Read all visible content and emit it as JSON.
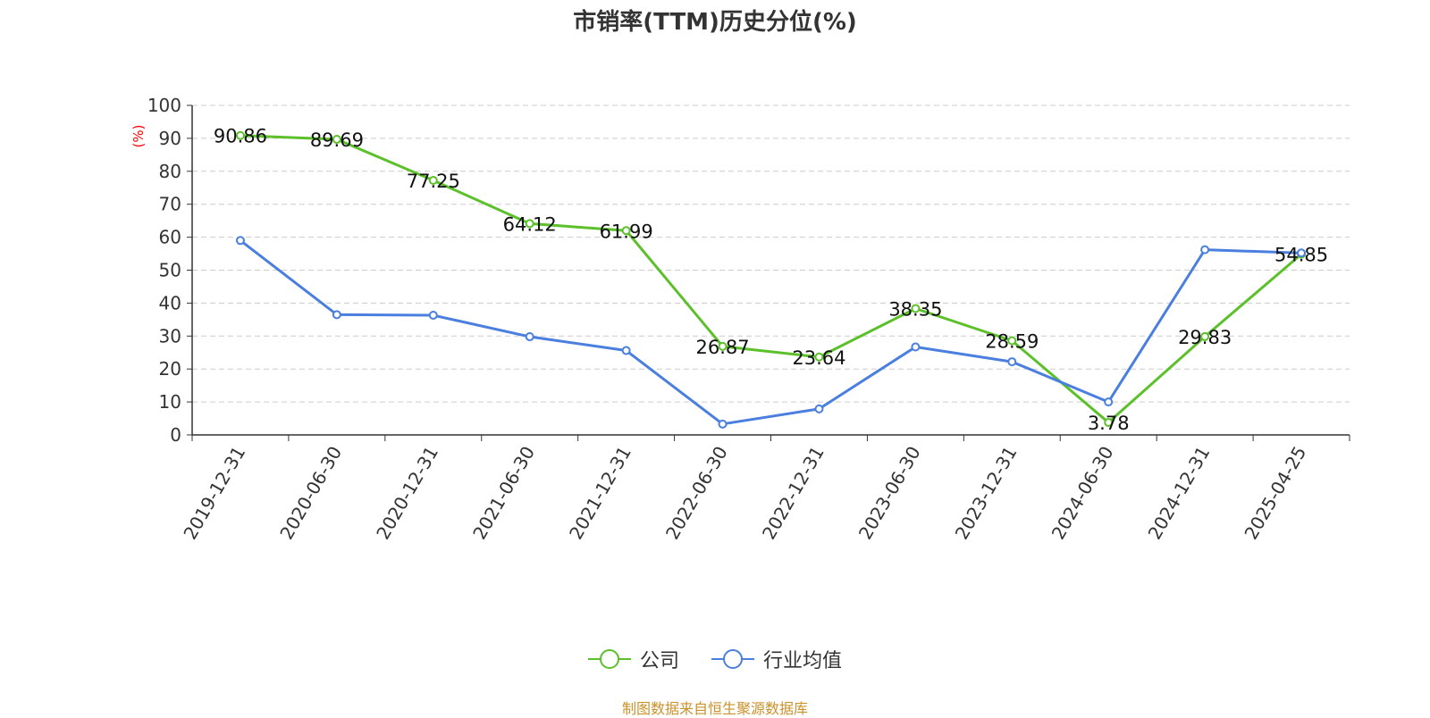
{
  "chart_data": {
    "type": "line",
    "title": "市销率(TTM)历史分位(%)",
    "ylabel": "(%)",
    "xlabel": "",
    "ylim": [
      0,
      100
    ],
    "yticks": [
      0,
      10,
      20,
      30,
      40,
      50,
      60,
      70,
      80,
      90,
      100
    ],
    "categories": [
      "2019-12-31",
      "2020-06-30",
      "2020-12-31",
      "2021-06-30",
      "2021-12-31",
      "2022-06-30",
      "2022-12-31",
      "2023-06-30",
      "2023-12-31",
      "2024-06-30",
      "2024-12-31",
      "2025-04-25"
    ],
    "grid": true,
    "legend_position": "bottom",
    "series": [
      {
        "name": "公司",
        "color": "#5cc02a",
        "values": [
          90.86,
          89.69,
          77.25,
          64.12,
          61.99,
          26.87,
          23.64,
          38.35,
          28.59,
          3.78,
          29.83,
          54.85
        ],
        "labels": [
          "90.86",
          "89.69",
          "77.25",
          "64.12",
          "61.99",
          "26.87",
          "23.64",
          "38.35",
          "28.59",
          "3.78",
          "29.83",
          "54.85"
        ]
      },
      {
        "name": "行业均值",
        "color": "#4a7fdf",
        "values": [
          59.0,
          36.5,
          36.3,
          29.8,
          25.6,
          3.3,
          7.9,
          26.7,
          22.2,
          10.0,
          56.2,
          55.2
        ]
      }
    ]
  },
  "footer": {
    "source": "制图数据来自恒生聚源数据库",
    "color": "#c9922a"
  }
}
